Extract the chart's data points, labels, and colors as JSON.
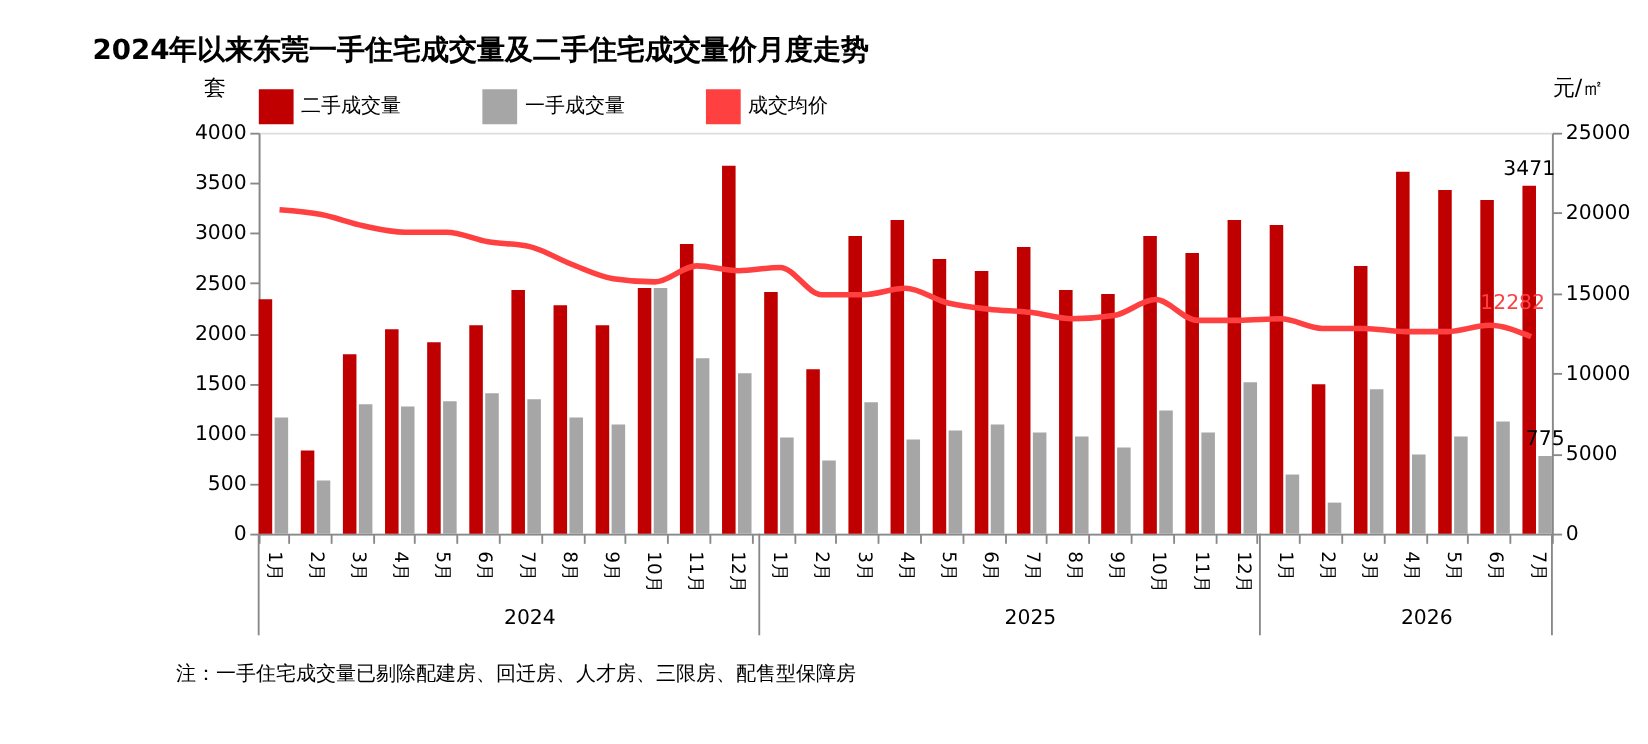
{
  "chart_data": {
    "type": "bar",
    "title": "2024年以来东莞一手住宅成交量及二手住宅成交量价月度走势",
    "ylabel": "套",
    "y2label": "元/㎡",
    "categories": [
      "1月",
      "2月",
      "3月",
      "4月",
      "5月",
      "6月",
      "7月",
      "8月",
      "9月",
      "10月",
      "11月",
      "12月",
      "1月",
      "2月",
      "3月",
      "4月",
      "5月",
      "6月",
      "7月",
      "8月",
      "9月",
      "10月",
      "11月",
      "12月",
      "1月",
      "2月",
      "3月",
      "4月",
      "5月",
      "6月",
      "7月"
    ],
    "series": [
      {
        "name": "二手成交量",
        "color": "#c00000",
        "values": [
          2340,
          830,
          1790,
          2040,
          1910,
          2080,
          2430,
          2280,
          2080,
          2450,
          2890,
          3670,
          2410,
          1640,
          2970,
          3130,
          2740,
          2620,
          2860,
          2430,
          2390,
          2970,
          2800,
          3130,
          3080,
          1490,
          2670,
          3610,
          3430,
          3330,
          3471
        ],
        "value_labels": [
          null,
          null,
          null,
          null,
          null,
          null,
          null,
          null,
          null,
          null,
          null,
          null,
          null,
          null,
          null,
          null,
          null,
          null,
          null,
          null,
          null,
          null,
          null,
          null,
          null,
          null,
          null,
          null,
          null,
          null,
          "3471"
        ]
      },
      {
        "name": "一手成交量",
        "color": "#a6a6a6",
        "values": [
          1160,
          530,
          1290,
          1270,
          1320,
          1400,
          1340,
          1160,
          1090,
          2450,
          1750,
          1600,
          960,
          730,
          1310,
          940,
          1030,
          1090,
          1010,
          970,
          860,
          1230,
          1010,
          1510,
          590,
          310,
          1440,
          790,
          970,
          1120,
          775
        ],
        "value_labels": [
          null,
          null,
          null,
          null,
          null,
          null,
          null,
          null,
          null,
          null,
          null,
          null,
          null,
          null,
          null,
          null,
          null,
          null,
          null,
          null,
          null,
          null,
          null,
          null,
          null,
          null,
          null,
          null,
          null,
          null,
          "775"
        ]
      },
      {
        "name": "成交均价",
        "type": "line",
        "axis": "y2",
        "color": "#ff4040",
        "values": [
          20200,
          19900,
          19200,
          18800,
          18800,
          18200,
          17900,
          16800,
          15900,
          15700,
          16700,
          16400,
          16600,
          14900,
          14900,
          15300,
          14400,
          14000,
          13800,
          13400,
          13600,
          14600,
          13300,
          13300,
          13400,
          12800,
          12800,
          12600,
          12600,
          13000,
          12282
        ],
        "value_labels": [
          null,
          null,
          null,
          null,
          null,
          null,
          null,
          null,
          null,
          null,
          null,
          null,
          null,
          null,
          null,
          null,
          null,
          null,
          null,
          null,
          null,
          null,
          null,
          null,
          null,
          null,
          null,
          null,
          null,
          null,
          "12282"
        ]
      }
    ],
    "ylim": [
      0,
      4000
    ],
    "yticks": [
      0,
      500,
      1000,
      1500,
      2000,
      2500,
      3000,
      3500,
      4000
    ],
    "y2lim": [
      0,
      25000
    ],
    "y2ticks": [
      0,
      5000,
      10000,
      15000,
      20000,
      25000
    ],
    "grid": false,
    "legend": "top",
    "annotations": [
      "2024",
      "2025",
      "2026",
      "注：一手住宅成交量已剔除配建房、回迁房、人才房、三限房、配售型保障房"
    ]
  }
}
